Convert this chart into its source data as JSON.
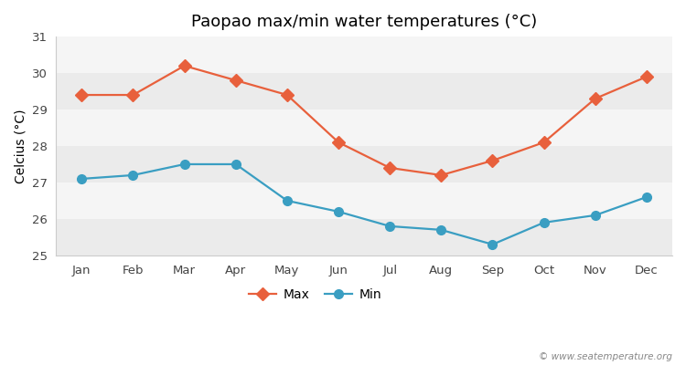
{
  "title": "Paopao max/min water temperatures (°C)",
  "ylabel": "Celcius (°C)",
  "months": [
    "Jan",
    "Feb",
    "Mar",
    "Apr",
    "May",
    "Jun",
    "Jul",
    "Aug",
    "Sep",
    "Oct",
    "Nov",
    "Dec"
  ],
  "max_temps": [
    29.4,
    29.4,
    30.2,
    29.8,
    29.4,
    28.1,
    27.4,
    27.2,
    27.6,
    28.1,
    29.3,
    29.9
  ],
  "min_temps": [
    27.1,
    27.2,
    27.5,
    27.5,
    26.5,
    26.2,
    25.8,
    25.7,
    25.3,
    25.9,
    26.1,
    26.6
  ],
  "max_color": "#E8603C",
  "min_color": "#3A9EC2",
  "figure_bg": "#ffffff",
  "plot_bg_light": "#f5f5f5",
  "plot_bg_dark": "#e8e8e8",
  "band_colors": [
    "#ebebeb",
    "#f7f7f7",
    "#ebebeb",
    "#f7f7f7",
    "#ebebeb",
    "#f7f7f7"
  ],
  "ylim": [
    25,
    31
  ],
  "yticks": [
    25,
    26,
    27,
    28,
    29,
    30,
    31
  ],
  "legend_labels": [
    "Max",
    "Min"
  ],
  "watermark": "© www.seatemperature.org",
  "title_fontsize": 13,
  "axis_label_fontsize": 10,
  "tick_fontsize": 9.5,
  "legend_fontsize": 10
}
